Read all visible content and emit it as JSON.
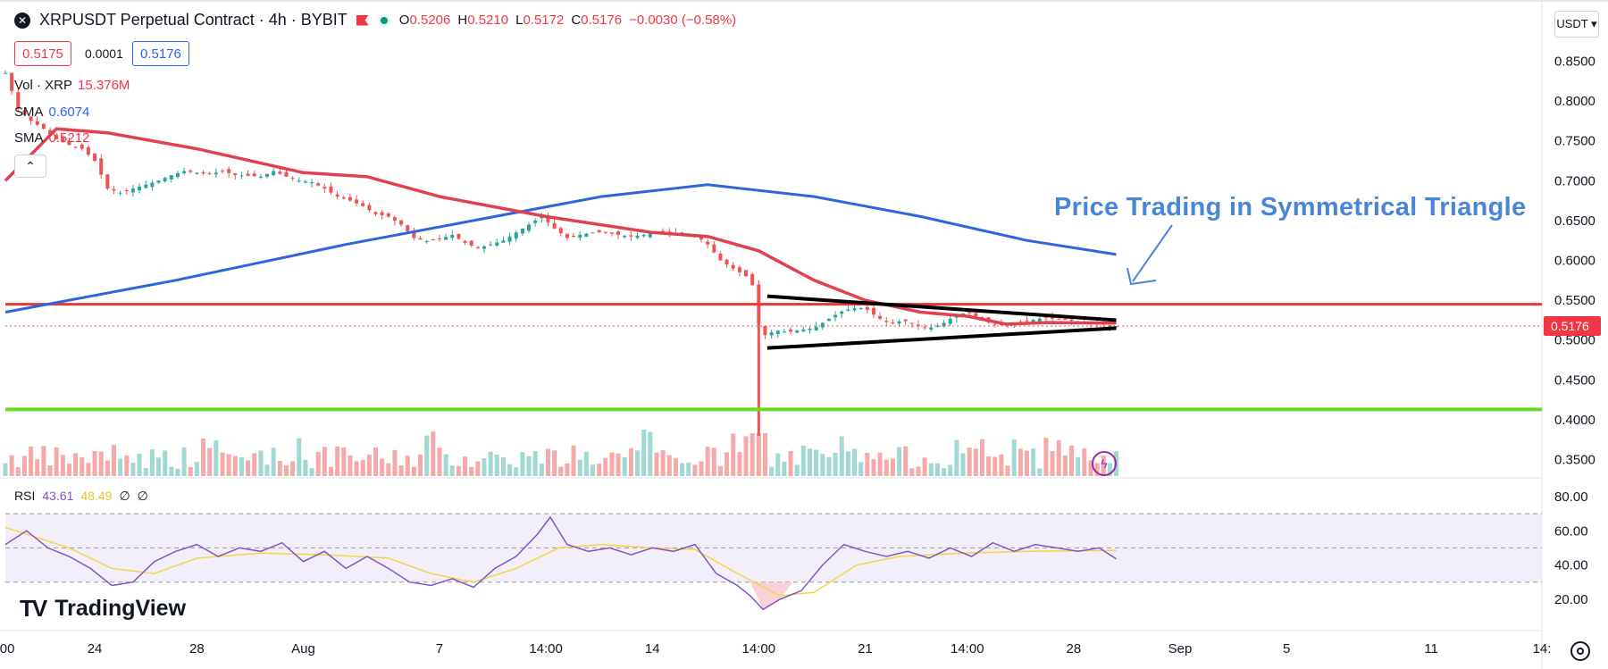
{
  "header": {
    "title": "XRPUSDT Perpetual Contract · 4h · BYBIT",
    "ohlc": [
      {
        "key": "O",
        "value": "0.5206"
      },
      {
        "key": "H",
        "value": "0.5210"
      },
      {
        "key": "L",
        "value": "0.5172"
      },
      {
        "key": "C",
        "value": "0.5176"
      }
    ],
    "change": "−0.0030 (−0.58%)"
  },
  "quote": {
    "bid": "0.5175",
    "spread": "0.0001",
    "ask": "0.5176"
  },
  "indicators": {
    "vol": {
      "label": "Vol · XRP",
      "value": "15.376M"
    },
    "sma1": {
      "label": "SMA",
      "value": "0.6074"
    },
    "sma2": {
      "label": "SMA",
      "value": "0.5212"
    },
    "collapse": "⌃"
  },
  "currency": "USDT ▾",
  "annotation": "Price Trading in Symmetrical Triangle",
  "rsi": {
    "label": "RSI",
    "value": "43.61",
    "ma": "48.49",
    "extra1": "∅",
    "extra2": "∅"
  },
  "brand": {
    "name": "TradingView",
    "mark": "TV"
  },
  "colors": {
    "bull": "#26a69a",
    "bear": "#ef5350",
    "sma_short": "#e0404f",
    "sma_long": "#2f63e0",
    "resistance": "#e53935",
    "support": "#66dd22",
    "triangle": "#000000",
    "rsi_line": "#7e57c2",
    "rsi_ma": "#f5d544",
    "annotation": "#4a86d8"
  },
  "chart_data": {
    "type": "line",
    "price_axis": [
      "0.8500",
      "0.8000",
      "0.7500",
      "0.7000",
      "0.6500",
      "0.6000",
      "0.5500",
      "0.5000",
      "0.4500",
      "0.4000",
      "0.3500"
    ],
    "price_range": [
      0.335,
      0.865
    ],
    "rsi_axis": [
      "80.00",
      "60.00",
      "40.00",
      "20.00"
    ],
    "rsi_range": [
      10,
      80
    ],
    "time_labels": [
      ":00",
      "24",
      "28",
      "Aug",
      "7",
      "14:00",
      "14",
      "14:00",
      "21",
      "14:00",
      "28",
      "Sep",
      "5",
      "11",
      "14:"
    ],
    "time_index": [
      0,
      21,
      45,
      70,
      102,
      127,
      152,
      177,
      202,
      226,
      251,
      276,
      301,
      335,
      361
    ],
    "x_max_index": 361,
    "current_price": "0.5176",
    "close_series": [
      {
        "i": 0,
        "v": 0.835
      },
      {
        "i": 3,
        "v": 0.79
      },
      {
        "i": 6,
        "v": 0.775
      },
      {
        "i": 9,
        "v": 0.765
      },
      {
        "i": 12,
        "v": 0.752
      },
      {
        "i": 15,
        "v": 0.745
      },
      {
        "i": 18,
        "v": 0.74
      },
      {
        "i": 21,
        "v": 0.725
      },
      {
        "i": 24,
        "v": 0.69
      },
      {
        "i": 27,
        "v": 0.685
      },
      {
        "i": 30,
        "v": 0.69
      },
      {
        "i": 33,
        "v": 0.695
      },
      {
        "i": 36,
        "v": 0.7
      },
      {
        "i": 39,
        "v": 0.707
      },
      {
        "i": 42,
        "v": 0.712
      },
      {
        "i": 45,
        "v": 0.71
      },
      {
        "i": 48,
        "v": 0.708
      },
      {
        "i": 51,
        "v": 0.712
      },
      {
        "i": 54,
        "v": 0.707
      },
      {
        "i": 57,
        "v": 0.706
      },
      {
        "i": 60,
        "v": 0.705
      },
      {
        "i": 63,
        "v": 0.712
      },
      {
        "i": 66,
        "v": 0.705
      },
      {
        "i": 69,
        "v": 0.7
      },
      {
        "i": 72,
        "v": 0.698
      },
      {
        "i": 75,
        "v": 0.69
      },
      {
        "i": 78,
        "v": 0.68
      },
      {
        "i": 81,
        "v": 0.675
      },
      {
        "i": 84,
        "v": 0.668
      },
      {
        "i": 87,
        "v": 0.658
      },
      {
        "i": 90,
        "v": 0.655
      },
      {
        "i": 93,
        "v": 0.645
      },
      {
        "i": 96,
        "v": 0.628
      },
      {
        "i": 99,
        "v": 0.624
      },
      {
        "i": 102,
        "v": 0.627
      },
      {
        "i": 105,
        "v": 0.632
      },
      {
        "i": 108,
        "v": 0.622
      },
      {
        "i": 111,
        "v": 0.615
      },
      {
        "i": 114,
        "v": 0.62
      },
      {
        "i": 117,
        "v": 0.625
      },
      {
        "i": 120,
        "v": 0.635
      },
      {
        "i": 123,
        "v": 0.645
      },
      {
        "i": 126,
        "v": 0.655
      },
      {
        "i": 129,
        "v": 0.64
      },
      {
        "i": 132,
        "v": 0.628
      },
      {
        "i": 135,
        "v": 0.632
      },
      {
        "i": 138,
        "v": 0.635
      },
      {
        "i": 141,
        "v": 0.635
      },
      {
        "i": 144,
        "v": 0.632
      },
      {
        "i": 147,
        "v": 0.63
      },
      {
        "i": 150,
        "v": 0.632
      },
      {
        "i": 153,
        "v": 0.635
      },
      {
        "i": 156,
        "v": 0.633
      },
      {
        "i": 159,
        "v": 0.635
      },
      {
        "i": 162,
        "v": 0.632
      },
      {
        "i": 165,
        "v": 0.62
      },
      {
        "i": 168,
        "v": 0.6
      },
      {
        "i": 171,
        "v": 0.59
      },
      {
        "i": 174,
        "v": 0.58
      },
      {
        "i": 176,
        "v": 0.565
      },
      {
        "i": 177,
        "v": 0.52
      },
      {
        "i": 178,
        "v": 0.505
      },
      {
        "i": 181,
        "v": 0.512
      },
      {
        "i": 184,
        "v": 0.51
      },
      {
        "i": 187,
        "v": 0.513
      },
      {
        "i": 190,
        "v": 0.515
      },
      {
        "i": 193,
        "v": 0.525
      },
      {
        "i": 196,
        "v": 0.535
      },
      {
        "i": 199,
        "v": 0.54
      },
      {
        "i": 202,
        "v": 0.54
      },
      {
        "i": 205,
        "v": 0.528
      },
      {
        "i": 208,
        "v": 0.52
      },
      {
        "i": 211,
        "v": 0.525
      },
      {
        "i": 214,
        "v": 0.518
      },
      {
        "i": 217,
        "v": 0.515
      },
      {
        "i": 220,
        "v": 0.52
      },
      {
        "i": 223,
        "v": 0.53
      },
      {
        "i": 226,
        "v": 0.535
      },
      {
        "i": 229,
        "v": 0.527
      },
      {
        "i": 232,
        "v": 0.52
      },
      {
        "i": 235,
        "v": 0.518
      },
      {
        "i": 238,
        "v": 0.522
      },
      {
        "i": 241,
        "v": 0.525
      },
      {
        "i": 244,
        "v": 0.528
      },
      {
        "i": 247,
        "v": 0.526
      },
      {
        "i": 250,
        "v": 0.525
      },
      {
        "i": 253,
        "v": 0.522
      },
      {
        "i": 256,
        "v": 0.52
      },
      {
        "i": 259,
        "v": 0.519
      },
      {
        "i": 261,
        "v": 0.5176
      }
    ],
    "sma_short": [
      {
        "i": 0,
        "v": 0.7
      },
      {
        "i": 12,
        "v": 0.765
      },
      {
        "i": 24,
        "v": 0.76
      },
      {
        "i": 45,
        "v": 0.74
      },
      {
        "i": 70,
        "v": 0.71
      },
      {
        "i": 85,
        "v": 0.705
      },
      {
        "i": 102,
        "v": 0.68
      },
      {
        "i": 127,
        "v": 0.655
      },
      {
        "i": 152,
        "v": 0.635
      },
      {
        "i": 165,
        "v": 0.63
      },
      {
        "i": 177,
        "v": 0.612
      },
      {
        "i": 190,
        "v": 0.575
      },
      {
        "i": 202,
        "v": 0.55
      },
      {
        "i": 215,
        "v": 0.535
      },
      {
        "i": 226,
        "v": 0.53
      },
      {
        "i": 235,
        "v": 0.52
      },
      {
        "i": 245,
        "v": 0.522
      },
      {
        "i": 261,
        "v": 0.5212
      }
    ],
    "sma_long": [
      {
        "i": 0,
        "v": 0.535
      },
      {
        "i": 40,
        "v": 0.575
      },
      {
        "i": 80,
        "v": 0.62
      },
      {
        "i": 110,
        "v": 0.65
      },
      {
        "i": 140,
        "v": 0.68
      },
      {
        "i": 165,
        "v": 0.695
      },
      {
        "i": 190,
        "v": 0.68
      },
      {
        "i": 215,
        "v": 0.655
      },
      {
        "i": 240,
        "v": 0.625
      },
      {
        "i": 261,
        "v": 0.6074
      }
    ],
    "resistance": 0.545,
    "support": 0.413,
    "triangle": {
      "upper": [
        {
          "i": 179,
          "v": 0.555
        },
        {
          "i": 261,
          "v": 0.525
        }
      ],
      "lower": [
        {
          "i": 179,
          "v": 0.49
        },
        {
          "i": 261,
          "v": 0.515
        }
      ]
    },
    "spike_low": {
      "i": 177,
      "v": 0.38
    },
    "rsi_series": [
      {
        "i": 0,
        "v": 52
      },
      {
        "i": 5,
        "v": 60
      },
      {
        "i": 10,
        "v": 50
      },
      {
        "i": 15,
        "v": 45
      },
      {
        "i": 20,
        "v": 38
      },
      {
        "i": 25,
        "v": 28
      },
      {
        "i": 30,
        "v": 30
      },
      {
        "i": 35,
        "v": 42
      },
      {
        "i": 40,
        "v": 48
      },
      {
        "i": 45,
        "v": 52
      },
      {
        "i": 50,
        "v": 45
      },
      {
        "i": 55,
        "v": 50
      },
      {
        "i": 60,
        "v": 48
      },
      {
        "i": 65,
        "v": 53
      },
      {
        "i": 70,
        "v": 42
      },
      {
        "i": 75,
        "v": 48
      },
      {
        "i": 80,
        "v": 38
      },
      {
        "i": 85,
        "v": 45
      },
      {
        "i": 90,
        "v": 38
      },
      {
        "i": 95,
        "v": 30
      },
      {
        "i": 100,
        "v": 28
      },
      {
        "i": 105,
        "v": 32
      },
      {
        "i": 110,
        "v": 27
      },
      {
        "i": 115,
        "v": 38
      },
      {
        "i": 120,
        "v": 45
      },
      {
        "i": 125,
        "v": 58
      },
      {
        "i": 128,
        "v": 68
      },
      {
        "i": 132,
        "v": 52
      },
      {
        "i": 137,
        "v": 48
      },
      {
        "i": 142,
        "v": 50
      },
      {
        "i": 147,
        "v": 46
      },
      {
        "i": 152,
        "v": 50
      },
      {
        "i": 157,
        "v": 48
      },
      {
        "i": 162,
        "v": 52
      },
      {
        "i": 167,
        "v": 35
      },
      {
        "i": 172,
        "v": 28
      },
      {
        "i": 175,
        "v": 22
      },
      {
        "i": 178,
        "v": 14
      },
      {
        "i": 182,
        "v": 20
      },
      {
        "i": 187,
        "v": 25
      },
      {
        "i": 192,
        "v": 40
      },
      {
        "i": 197,
        "v": 52
      },
      {
        "i": 202,
        "v": 48
      },
      {
        "i": 207,
        "v": 45
      },
      {
        "i": 212,
        "v": 48
      },
      {
        "i": 217,
        "v": 44
      },
      {
        "i": 222,
        "v": 50
      },
      {
        "i": 227,
        "v": 45
      },
      {
        "i": 232,
        "v": 53
      },
      {
        "i": 237,
        "v": 48
      },
      {
        "i": 242,
        "v": 52
      },
      {
        "i": 247,
        "v": 50
      },
      {
        "i": 252,
        "v": 48
      },
      {
        "i": 257,
        "v": 50
      },
      {
        "i": 261,
        "v": 43.61
      }
    ],
    "rsi_ma": [
      {
        "i": 0,
        "v": 62
      },
      {
        "i": 15,
        "v": 50
      },
      {
        "i": 25,
        "v": 38
      },
      {
        "i": 35,
        "v": 35
      },
      {
        "i": 45,
        "v": 44
      },
      {
        "i": 60,
        "v": 47
      },
      {
        "i": 75,
        "v": 46
      },
      {
        "i": 90,
        "v": 44
      },
      {
        "i": 100,
        "v": 35
      },
      {
        "i": 110,
        "v": 30
      },
      {
        "i": 120,
        "v": 38
      },
      {
        "i": 130,
        "v": 50
      },
      {
        "i": 140,
        "v": 52
      },
      {
        "i": 152,
        "v": 50
      },
      {
        "i": 162,
        "v": 49
      },
      {
        "i": 172,
        "v": 35
      },
      {
        "i": 182,
        "v": 22
      },
      {
        "i": 190,
        "v": 24
      },
      {
        "i": 200,
        "v": 40
      },
      {
        "i": 210,
        "v": 45
      },
      {
        "i": 225,
        "v": 47
      },
      {
        "i": 240,
        "v": 48
      },
      {
        "i": 261,
        "v": 48.49
      }
    ]
  }
}
